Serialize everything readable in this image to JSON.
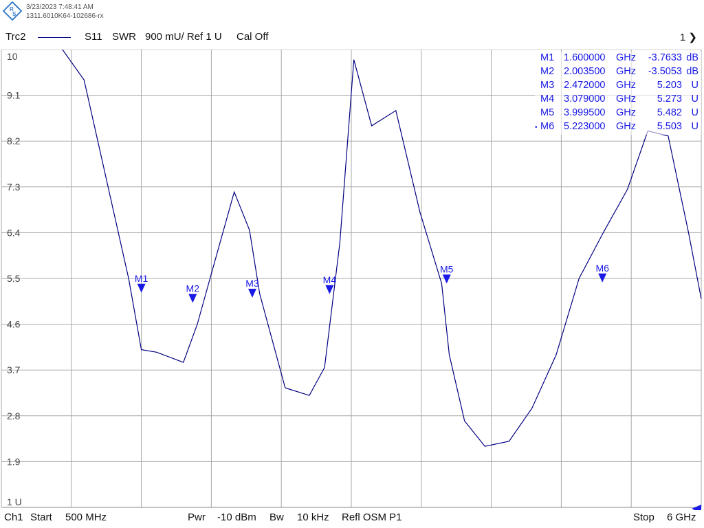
{
  "header": {
    "datetime": "3/23/2023 7:48:41 AM",
    "serial": "1311.6010K64-102686-rx"
  },
  "trace": {
    "name": "Trc2",
    "parameter": "S11",
    "format": "SWR",
    "scale": "900 mU/ Ref 1 U",
    "cal": "Cal Off",
    "channel_indicator": "1",
    "color": "#000080"
  },
  "footer": {
    "channel": "Ch1",
    "start_label": "Start",
    "start_value": "500 MHz",
    "pwr_label": "Pwr",
    "pwr_value": "-10 dBm",
    "bw_label": "Bw",
    "bw_value": "10 kHz",
    "refl": "Refl OSM P1",
    "stop_label": "Stop",
    "stop_value": "6 GHz"
  },
  "markers": [
    {
      "name": "M1",
      "freq": "1.600000",
      "freq_unit": "GHz",
      "value": "-3.7633",
      "unit": "dB",
      "active": false
    },
    {
      "name": "M2",
      "freq": "2.003500",
      "freq_unit": "GHz",
      "value": "-3.5053",
      "unit": "dB",
      "active": false
    },
    {
      "name": "M3",
      "freq": "2.472000",
      "freq_unit": "GHz",
      "value": "5.203",
      "unit": "U",
      "active": false
    },
    {
      "name": "M4",
      "freq": "3.079000",
      "freq_unit": "GHz",
      "value": "5.273",
      "unit": "U",
      "active": false
    },
    {
      "name": "M5",
      "freq": "3.999500",
      "freq_unit": "GHz",
      "value": "5.482",
      "unit": "U",
      "active": false
    },
    {
      "name": "M6",
      "freq": "5.223000",
      "freq_unit": "GHz",
      "value": "5.503",
      "unit": "U",
      "active": true
    }
  ],
  "chart_data": {
    "type": "line",
    "title": "",
    "xlabel": "",
    "ylabel": "",
    "xlim": [
      0.5,
      6.0
    ],
    "ylim": [
      1.0,
      10.0
    ],
    "x_unit": "GHz",
    "y_unit": "U",
    "grid": true,
    "y_ticks": [
      "10",
      "9.1",
      "8.2",
      "7.3",
      "6.4",
      "5.5",
      "4.6",
      "3.7",
      "2.8",
      "1.9",
      "1 U"
    ],
    "y_tick_values": [
      10,
      9.1,
      8.2,
      7.3,
      6.4,
      5.5,
      4.6,
      3.7,
      2.8,
      1.9,
      1.0
    ],
    "series": [
      {
        "name": "Trc2",
        "color": "#000080",
        "x": [
          0.98,
          1.15,
          1.5,
          1.6,
          1.72,
          1.93,
          2.04,
          2.14,
          2.33,
          2.45,
          2.53,
          2.73,
          2.92,
          3.04,
          3.16,
          3.27,
          3.41,
          3.6,
          3.79,
          3.96,
          4.02,
          4.14,
          4.3,
          4.49,
          4.67,
          4.86,
          5.04,
          5.23,
          5.42,
          5.58,
          5.74,
          5.9,
          6.0
        ],
        "y": [
          10.0,
          9.4,
          5.5,
          4.1,
          4.05,
          3.85,
          4.6,
          5.5,
          7.2,
          6.45,
          5.2,
          3.35,
          3.2,
          3.75,
          6.2,
          9.8,
          8.5,
          8.8,
          6.8,
          5.4,
          4.0,
          2.7,
          2.2,
          2.3,
          2.95,
          4.0,
          5.5,
          6.4,
          7.25,
          8.4,
          8.3,
          6.4,
          5.1
        ]
      }
    ],
    "markers": [
      {
        "name": "M1",
        "x": 1.6,
        "y": 5.3
      },
      {
        "name": "M2",
        "x": 2.0035,
        "y": 5.1
      },
      {
        "name": "M3",
        "x": 2.472,
        "y": 5.203
      },
      {
        "name": "M4",
        "x": 3.079,
        "y": 5.273
      },
      {
        "name": "M5",
        "x": 3.9995,
        "y": 5.482
      },
      {
        "name": "M6",
        "x": 5.223,
        "y": 5.503
      }
    ]
  }
}
